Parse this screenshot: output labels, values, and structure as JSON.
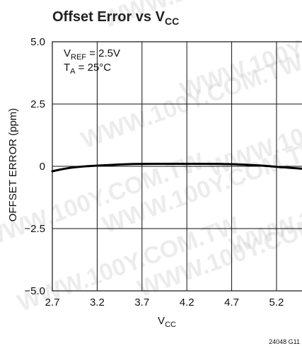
{
  "chart_data": {
    "type": "line",
    "title": {
      "main": "Offset Error vs V",
      "sub": "CC"
    },
    "xlabel": {
      "main": "V",
      "sub": "CC"
    },
    "ylabel": "OFFSET ERROR (ppm)",
    "xlim": [
      2.7,
      5.5
    ],
    "ylim": [
      -5.0,
      5.0
    ],
    "x_ticks": [
      {
        "value": 2.7,
        "label": "2.7"
      },
      {
        "value": 3.2,
        "label": "3.2"
      },
      {
        "value": 3.7,
        "label": "3.7"
      },
      {
        "value": 4.2,
        "label": "4.2"
      },
      {
        "value": 4.7,
        "label": "4.7"
      },
      {
        "value": 5.2,
        "label": "5.2"
      }
    ],
    "y_ticks": [
      {
        "value": 5.0,
        "label": "5.0"
      },
      {
        "value": 2.5,
        "label": "2.5"
      },
      {
        "value": 0,
        "label": "0"
      },
      {
        "value": -2.5,
        "label": "−2.5"
      },
      {
        "value": -5.0,
        "label": "−5.0"
      }
    ],
    "grid": true,
    "annotations": [
      {
        "main": "V",
        "sub": "REF",
        "rest": " = 2.5V"
      },
      {
        "main": "T",
        "sub": "A",
        "rest": " = 25°C"
      }
    ],
    "series": [
      {
        "x": [
          2.7,
          2.8,
          2.9,
          3.0,
          3.2,
          3.5,
          3.7,
          4.0,
          4.2,
          4.5,
          4.7,
          5.0,
          5.2,
          5.5
        ],
        "y": [
          -0.2,
          -0.12,
          -0.06,
          -0.02,
          0.03,
          0.08,
          0.1,
          0.1,
          0.1,
          0.1,
          0.09,
          0.04,
          -0.02,
          -0.1
        ]
      }
    ],
    "figure_code": "24048 G11",
    "watermark": "WWW.100Y.COM.TW"
  }
}
